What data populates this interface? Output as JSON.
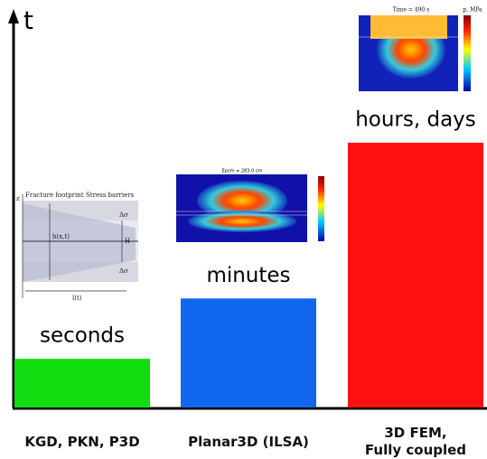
{
  "chart_data": {
    "type": "bar",
    "y_label": "t",
    "categories": [
      "KGD, PKN, P3D",
      "Planar3D (ILSA)",
      "3D FEM,\nFully coupled"
    ],
    "values": [
      12.5,
      28,
      68
    ],
    "colors": [
      "#11dd11",
      "#1166ee",
      "#ff1111"
    ],
    "annotations": [
      "seconds",
      "minutes",
      "hours, days"
    ],
    "ylim": [
      0,
      100
    ]
  },
  "insets": {
    "diagram": {
      "labels": [
        "Fracture footprint",
        "Stress barriers",
        "h(x,t)",
        "H",
        "Δσ",
        "Δσ",
        "l(t)",
        "z"
      ]
    },
    "heatmap_planar": {
      "title": "Epsm = 283.0 cm"
    },
    "heatmap_fem": {
      "title": "Time = 490 s",
      "colorbar_label": "p, MPa"
    }
  }
}
